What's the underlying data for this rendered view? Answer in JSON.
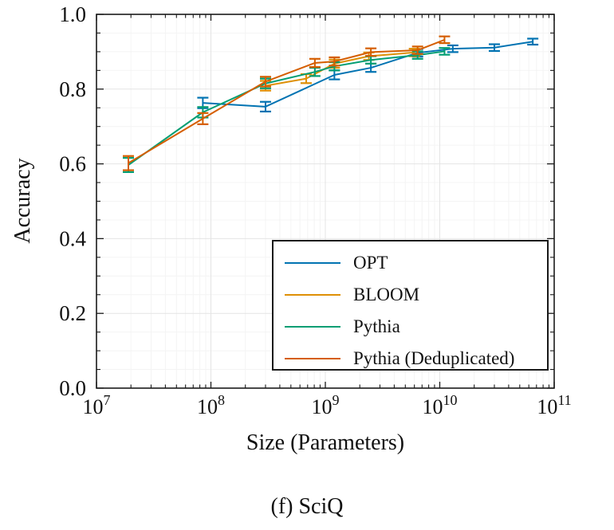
{
  "figure": {
    "caption": "(f) SciQ",
    "xlabel": "Size (Parameters)",
    "ylabel": "Accuracy"
  },
  "chart_data": {
    "type": "line",
    "title": "",
    "xlabel": "Size (Parameters)",
    "ylabel": "Accuracy",
    "caption": "(f) SciQ",
    "xscale": "log",
    "xlim": [
      10000000.0,
      100000000000.0
    ],
    "ylim": [
      0.0,
      1.0
    ],
    "x_tick_exponents": [
      7,
      8,
      9,
      10,
      11
    ],
    "y_ticks": [
      0.0,
      0.2,
      0.4,
      0.6,
      0.8,
      1.0
    ],
    "y_minor_step": 0.05,
    "grid": true,
    "legend_position": "lower-right-inside",
    "colors": {
      "spine": "#1a1a1a",
      "major_grid": "#e4e4e4",
      "minor_grid": "#f4f4f4",
      "tick": "#1a1a1a"
    },
    "series": [
      {
        "name": "OPT",
        "color": "#0173b2",
        "x": [
          85000000.0,
          300000000.0,
          1200000000.0,
          2500000000.0,
          6400000000.0,
          13000000000.0,
          30000000000.0,
          65000000000.0
        ],
        "y": [
          0.763,
          0.753,
          0.838,
          0.857,
          0.897,
          0.908,
          0.911,
          0.927
        ],
        "yerr": [
          0.014,
          0.013,
          0.012,
          0.011,
          0.01,
          0.009,
          0.009,
          0.008
        ]
      },
      {
        "name": "BLOOM",
        "color": "#de8f05",
        "x": [
          300000000.0,
          680000000.0,
          1200000000.0,
          2400000000.0,
          6000000000.0
        ],
        "y": [
          0.809,
          0.828,
          0.868,
          0.888,
          0.898
        ],
        "yerr": [
          0.013,
          0.012,
          0.011,
          0.01,
          0.01
        ]
      },
      {
        "name": "Pythia",
        "color": "#029e73",
        "x": [
          19000000.0,
          85000000.0,
          300000000.0,
          810000000.0,
          1200000000.0,
          2500000000.0,
          6400000000.0,
          11000000000.0
        ],
        "y": [
          0.597,
          0.738,
          0.815,
          0.846,
          0.861,
          0.878,
          0.891,
          0.901
        ],
        "yerr": [
          0.019,
          0.014,
          0.013,
          0.011,
          0.011,
          0.01,
          0.01,
          0.009
        ]
      },
      {
        "name": "Pythia (Deduplicated)",
        "color": "#d55e00",
        "x": [
          19000000.0,
          85000000.0,
          300000000.0,
          810000000.0,
          1200000000.0,
          2500000000.0,
          6400000000.0,
          11000000000.0
        ],
        "y": [
          0.602,
          0.721,
          0.82,
          0.87,
          0.874,
          0.899,
          0.904,
          0.932
        ],
        "yerr": [
          0.019,
          0.015,
          0.013,
          0.011,
          0.011,
          0.01,
          0.01,
          0.009
        ]
      }
    ]
  }
}
